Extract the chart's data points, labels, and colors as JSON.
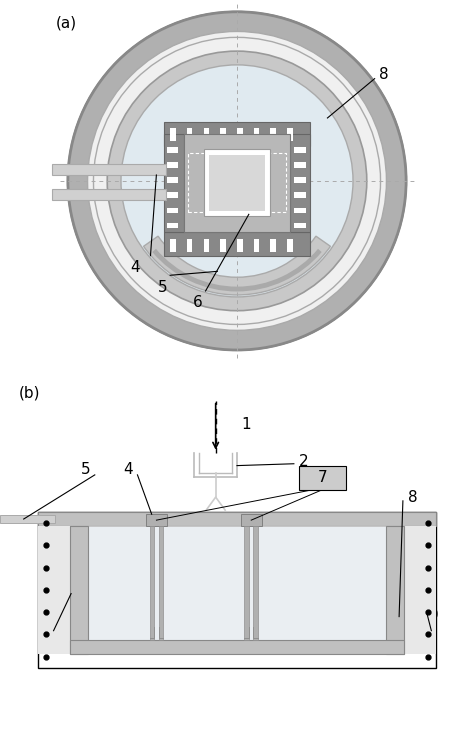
{
  "fig_width": 4.74,
  "fig_height": 7.42,
  "dpi": 100,
  "bg_color": "#ffffff",
  "wafer_fill": "#f0f0f0",
  "wafer_ring_fill": "#d0d0d0",
  "inner_circle_fill": "#e8e8e8",
  "grid_fill": "#e0eaf0",
  "chip_dark": "#888888",
  "chip_mid": "#b8b8b8",
  "chip_light": "#d8d8d8",
  "chip_white": "#f5f5f5",
  "pad_color": "#909090",
  "wall_color": "#c0c0c0",
  "wall_edge": "#888888",
  "box_fill": "#d8d8d8",
  "wire_color": "#c8c8c8",
  "sample_fill": "#eaeef2"
}
